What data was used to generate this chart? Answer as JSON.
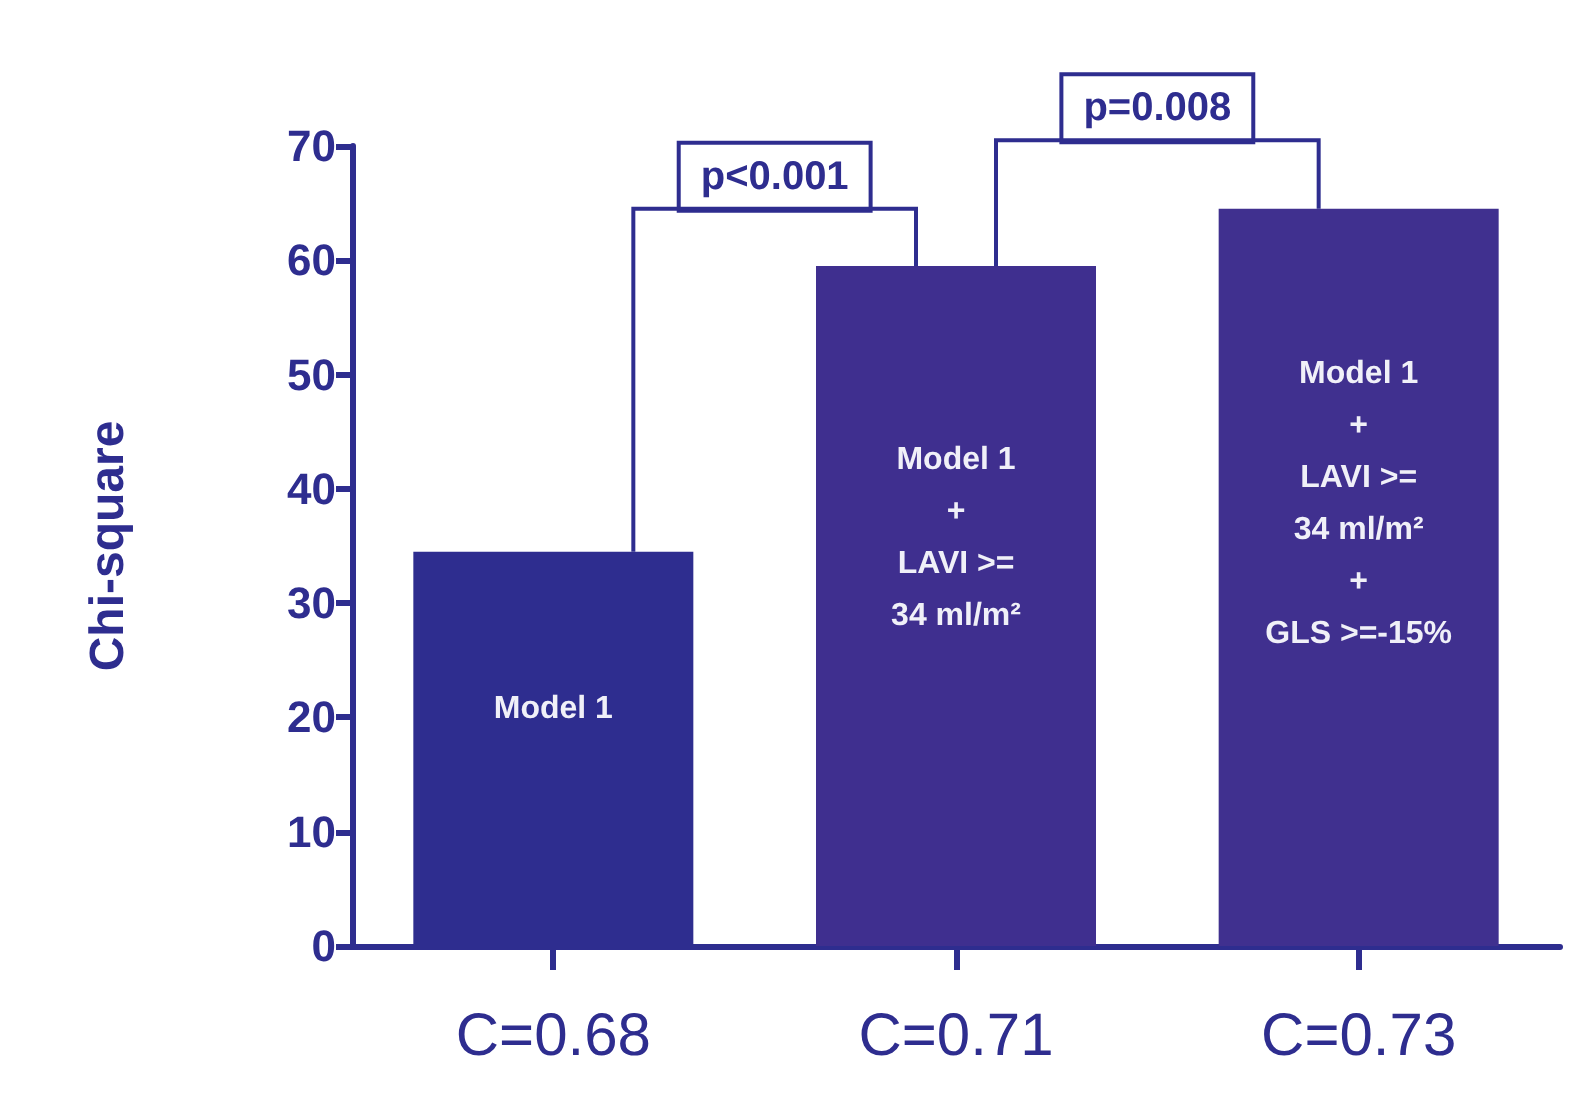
{
  "chart_data": {
    "type": "bar",
    "ylabel": "Chi-square",
    "categories": [
      "C=0.68",
      "C=0.71",
      "C=0.73"
    ],
    "values": [
      34.5,
      59.5,
      64.5
    ],
    "colors": [
      "#2e2d8f",
      "#3f2f8f",
      "#40308f"
    ],
    "ylim": [
      0,
      70
    ],
    "yticks": [
      0,
      10,
      20,
      30,
      40,
      50,
      60,
      70
    ],
    "grid": false,
    "annotations": [
      "Model 1",
      "Model 1\n+\nLAVI >=\n34 ml/m²",
      "Model 1\n+\nLAVI >=\n34 ml/m²\n+\nGLS >=-15%",
      "p<0.001",
      "p=0.008"
    ]
  }
}
